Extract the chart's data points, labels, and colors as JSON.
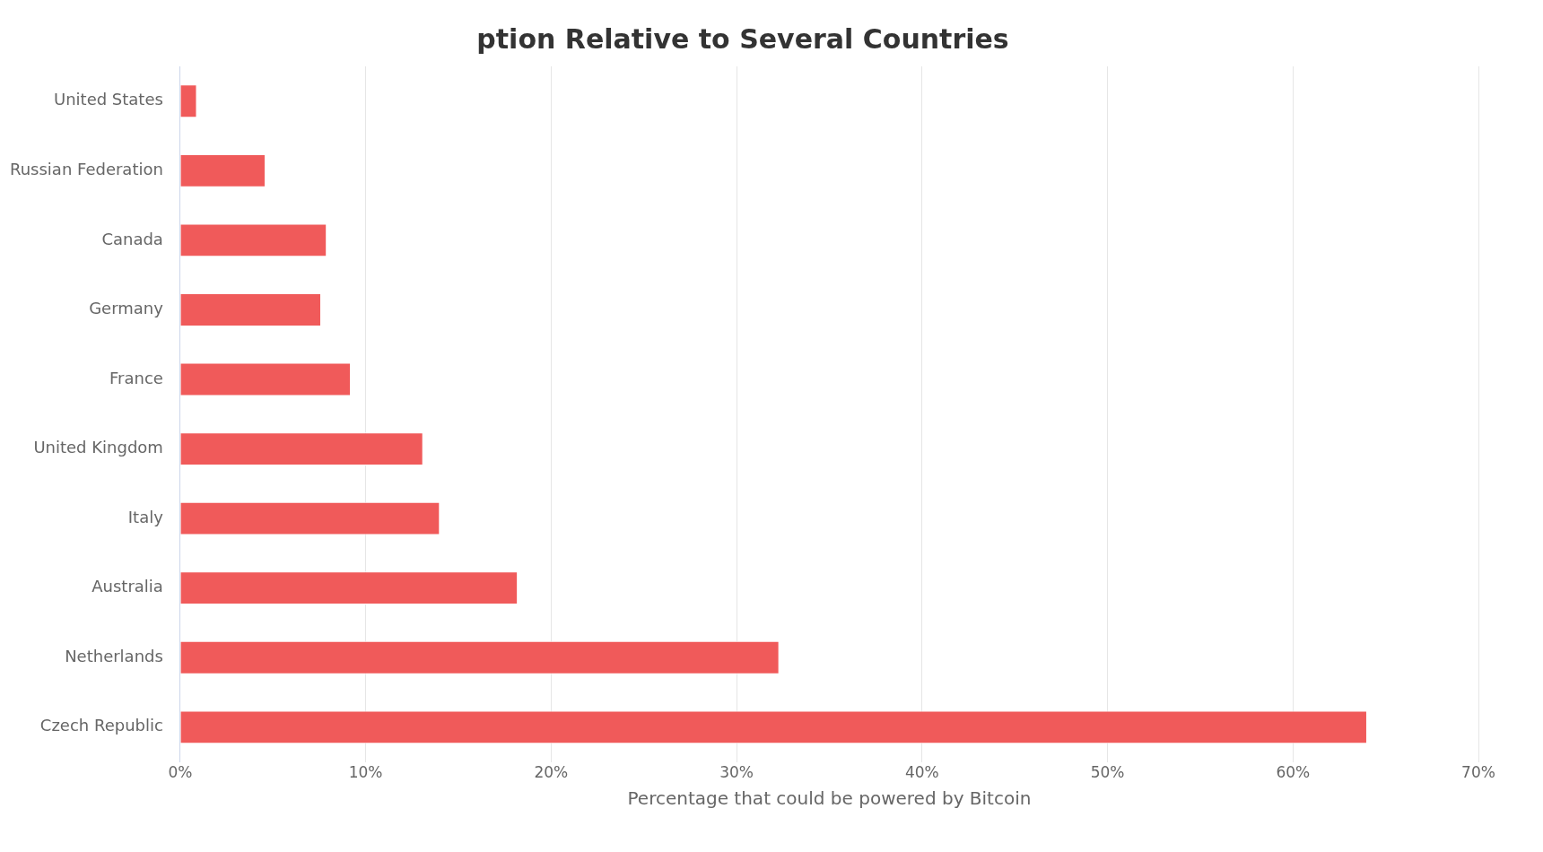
{
  "chart_data": {
    "type": "bar",
    "orientation": "horizontal",
    "title": "ption Relative to Several Countries",
    "xlabel": "Percentage that could be powered by Bitcoin",
    "categories": [
      "United States",
      "Russian Federation",
      "Canada",
      "Germany",
      "France",
      "United Kingdom",
      "Italy",
      "Australia",
      "Netherlands",
      "Czech Republic"
    ],
    "values": [
      0.9,
      4.6,
      7.9,
      7.6,
      9.2,
      13.1,
      14,
      18.2,
      32.3,
      64
    ],
    "color": "#f05a5a",
    "xlim": [
      0,
      70
    ],
    "xticks": [
      {
        "value": 0,
        "label": "0%"
      },
      {
        "value": 10,
        "label": "10%"
      },
      {
        "value": 20,
        "label": "20%"
      },
      {
        "value": 30,
        "label": "30%"
      },
      {
        "value": 40,
        "label": "40%"
      },
      {
        "value": 50,
        "label": "50%"
      },
      {
        "value": 60,
        "label": "60%"
      },
      {
        "value": 70,
        "label": "70%"
      }
    ],
    "grid": "x",
    "legend": false
  }
}
